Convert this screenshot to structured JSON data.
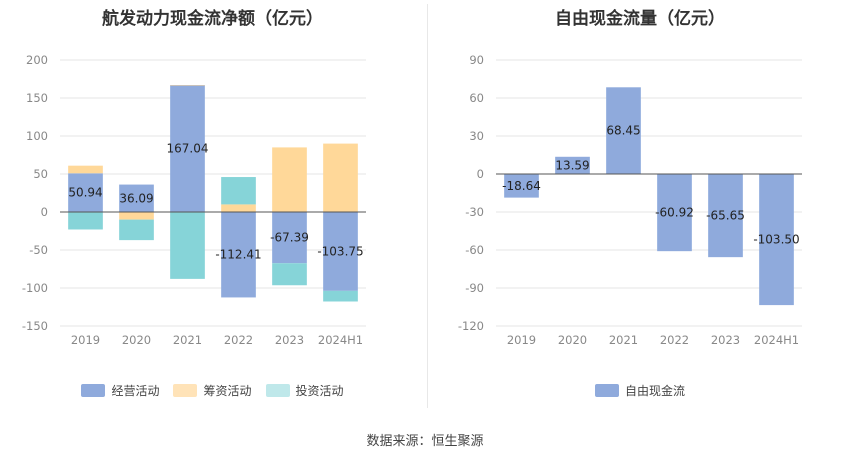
{
  "chart_data": [
    {
      "type": "bar",
      "stacked": true,
      "title": "航发动力现金流净额（亿元）",
      "categories": [
        "2019",
        "2020",
        "2021",
        "2022",
        "2023",
        "2024H1"
      ],
      "ylim": [
        -150,
        200
      ],
      "yticks": [
        200,
        150,
        100,
        50,
        0,
        -50,
        -100,
        -150
      ],
      "grid": true,
      "legend_position": "bottom",
      "series": [
        {
          "name": "经营活动",
          "color": "#8faadc",
          "values": [
            50.94,
            36.09,
            167.04,
            -112.41,
            -67.39,
            -103.75
          ]
        },
        {
          "name": "筹资活动",
          "color": "#ffd899",
          "values": [
            10,
            -10,
            0,
            10,
            85,
            90
          ]
        },
        {
          "name": "投资活动",
          "color": "#86d4d8",
          "values": [
            -23,
            -27,
            -88,
            36,
            -29,
            -14
          ]
        }
      ],
      "data_labels": [
        "50.94",
        "36.09",
        "167.04",
        "-112.41",
        "-67.39",
        "-103.75"
      ]
    },
    {
      "type": "bar",
      "title": "自由现金流量（亿元）",
      "categories": [
        "2019",
        "2020",
        "2021",
        "2022",
        "2023",
        "2024H1"
      ],
      "ylim": [
        -120,
        90
      ],
      "yticks": [
        90,
        60,
        30,
        0,
        -30,
        -60,
        -90,
        -120
      ],
      "grid": true,
      "legend_position": "bottom",
      "series": [
        {
          "name": "自由现金流",
          "color": "#8faadc",
          "values": [
            -18.64,
            13.59,
            68.45,
            -60.92,
            -65.65,
            -103.5
          ]
        }
      ],
      "data_labels": [
        "-18.64",
        "13.59",
        "68.45",
        "-60.92",
        "-65.65",
        "-103.50"
      ]
    }
  ],
  "legend_colors": {
    "经营活动": "#8faadc",
    "筹资活动": "#ffe3b8",
    "投资活动": "#bfe8ea",
    "自由现金流": "#8faadc"
  },
  "footer": {
    "source": "数据来源：恒生聚源"
  }
}
